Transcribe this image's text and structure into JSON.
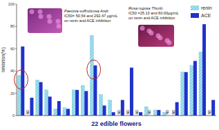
{
  "chart_data": {
    "type": "bar",
    "x_label": "22 edible flowers",
    "y_label": "Inhibition(%)",
    "categories": [
      null,
      null,
      null,
      null,
      null,
      null,
      null,
      null,
      null,
      null,
      null,
      null,
      null,
      null,
      null,
      null,
      null,
      null,
      null,
      null,
      null,
      null
    ],
    "series": [
      {
        "name": "renin",
        "color": "#7fd0e6",
        "values": [
          36,
          null,
          32,
          23,
          6,
          7,
          23,
          27,
          72,
          19,
          14,
          null,
          null,
          null,
          8,
          5,
          3,
          null,
          39,
          45,
          57,
          null
        ],
        "value_labels": [
          null,
          "ND",
          null,
          null,
          null,
          null,
          null,
          null,
          null,
          null,
          null,
          "ND",
          "ND",
          "ND",
          null,
          null,
          null,
          "ND",
          null,
          null,
          null,
          "ND"
        ]
      },
      {
        "name": "ACE",
        "color": "#1f33c9",
        "values": [
          62,
          16,
          30,
          17,
          13,
          6,
          23,
          22,
          45,
          9,
          3,
          14,
          43,
          3,
          null,
          5,
          null,
          12,
          39,
          49,
          82,
          14
        ],
        "value_labels": [
          null,
          null,
          null,
          null,
          null,
          null,
          null,
          null,
          null,
          null,
          null,
          null,
          null,
          null,
          "ND",
          null,
          "ND",
          null,
          null,
          null,
          null,
          null
        ]
      }
    ],
    "ylim": [
      0,
      100
    ],
    "yticks": [
      0,
      20,
      40,
      60,
      80,
      100
    ],
    "legend": "top-right",
    "data_labels": true,
    "annotations": [
      {
        "text": [
          "Paeonia suffruticosa Andr.",
          "IC50= 50.54 and 292.47 μg/mL",
          "on renin and ACE inhibition"
        ]
      },
      {
        "text": [
          "Rosa rugosa Thunb.",
          "IC50 =25.13 and 60.00μg/mL",
          "on renin and ACE inhibition"
        ]
      }
    ]
  }
}
